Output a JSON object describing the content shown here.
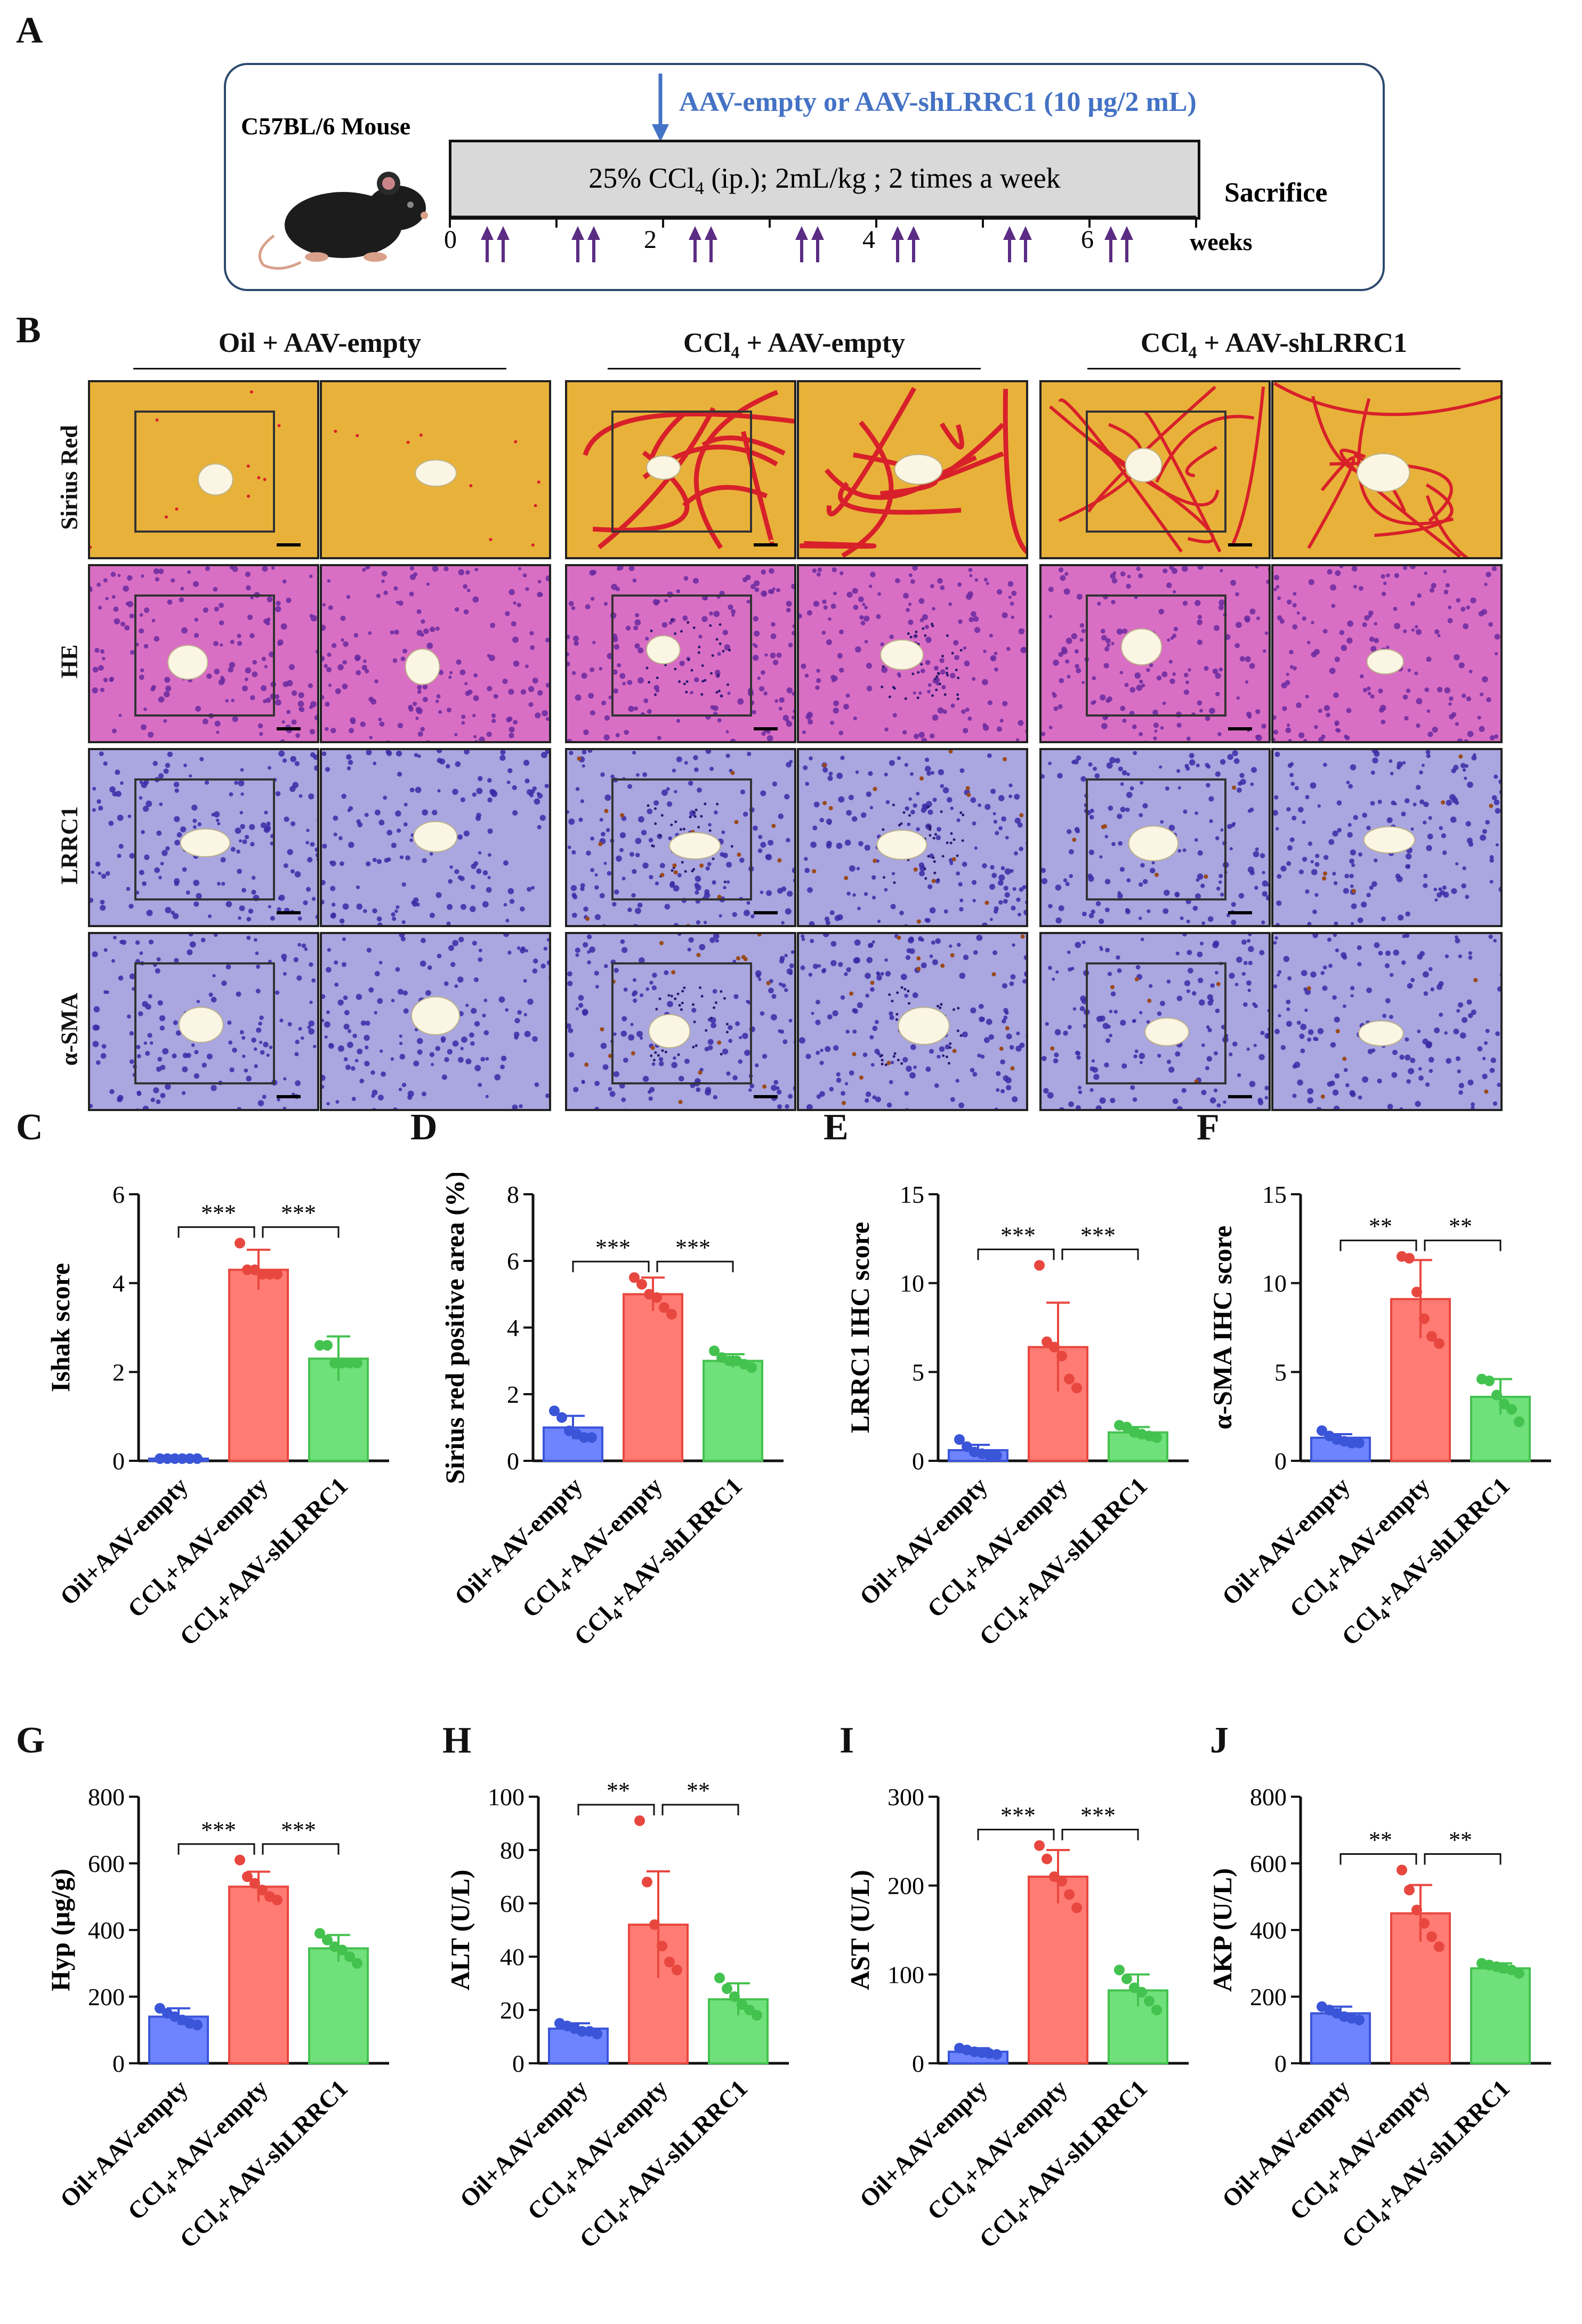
{
  "panel_letters": {
    "A": "A",
    "B": "B",
    "C": "C",
    "D": "D",
    "E": "E",
    "F": "F",
    "G": "G",
    "H": "H",
    "I": "I",
    "J": "J"
  },
  "timeline": {
    "mouse_label": "C57BL/6 Mouse",
    "injection_label": "AAV-empty or AAV-shLRRC1 (10 μg/2 mL)",
    "treatment_pre": "25% CCl",
    "treatment_sub": "4",
    "treatment_post": " (ip.); 2mL/kg ; 2 times a week",
    "sacrifice": "Sacrifice",
    "weeks_label": "weeks",
    "ticks": [
      "0",
      "2",
      "4",
      "6"
    ],
    "colors": {
      "injection": "#4472c4",
      "dose_arrow": "#5b2c83",
      "bar": "#d9d9d9"
    }
  },
  "histology": {
    "groups": [
      {
        "pre": "Oil + AAV-empty",
        "sub": "",
        "post": ""
      },
      {
        "pre": "CCl",
        "sub": "4",
        "post": " + AAV-empty"
      },
      {
        "pre": "CCl",
        "sub": "4",
        "post": " + AAV-shLRRC1"
      }
    ],
    "stains": [
      "Sirius Red",
      "HE",
      "LRRC1",
      "α-SMA"
    ],
    "colors": {
      "sirius": "#e8b23a",
      "he": "#d96fc4",
      "ihc": "#a9a6e0",
      "collagen": "#d8202a",
      "nuclei": "#3b2aa6",
      "brown": "#9a4a1a"
    }
  },
  "chart_data": [
    {
      "type": "bar",
      "panel": "C",
      "ylabel": "Ishak score",
      "ylim": [
        0,
        6
      ],
      "yticks": [
        0,
        2,
        4,
        6
      ],
      "categories": [
        "Oil+AAV-empty",
        "CCl4+AAV-empty",
        "CCl4+AAV-shLRRC1"
      ],
      "values": [
        0.05,
        4.3,
        2.3
      ],
      "errors": [
        0.02,
        0.45,
        0.5
      ],
      "points": [
        [
          0.05,
          0.05,
          0.05,
          0.05,
          0.05,
          0.05
        ],
        [
          4.9,
          4.3,
          4.3,
          4.2,
          4.2,
          4.2
        ],
        [
          2.6,
          2.6,
          2.2,
          2.2,
          2.2,
          2.2
        ]
      ],
      "sig": [
        "***",
        "***"
      ]
    },
    {
      "type": "bar",
      "panel": "D",
      "ylabel": "Sirius red positive area (%)",
      "ylim": [
        0,
        8
      ],
      "yticks": [
        0,
        2,
        4,
        6,
        8
      ],
      "categories": [
        "Oil+AAV-empty",
        "CCl4+AAV-empty",
        "CCl4+AAV-shLRRC1"
      ],
      "values": [
        1.0,
        5.0,
        3.0
      ],
      "errors": [
        0.35,
        0.5,
        0.2
      ],
      "points": [
        [
          1.5,
          1.3,
          0.9,
          0.8,
          0.7,
          0.7
        ],
        [
          5.5,
          5.3,
          5.0,
          4.9,
          4.6,
          4.4
        ],
        [
          3.3,
          3.1,
          3.0,
          3.0,
          2.9,
          2.8
        ]
      ],
      "sig": [
        "***",
        "***"
      ]
    },
    {
      "type": "bar",
      "panel": "E",
      "ylabel": "LRRC1 IHC score",
      "ylim": [
        0,
        15
      ],
      "yticks": [
        0,
        5,
        10,
        15
      ],
      "categories": [
        "Oil+AAV-empty",
        "CCl4+AAV-empty",
        "CCl4+AAV-shLRRC1"
      ],
      "values": [
        0.6,
        6.4,
        1.6
      ],
      "errors": [
        0.3,
        2.5,
        0.3
      ],
      "points": [
        [
          1.2,
          0.8,
          0.5,
          0.4,
          0.3,
          0.3
        ],
        [
          11.0,
          6.7,
          6.4,
          5.9,
          4.6,
          4.1
        ],
        [
          2.0,
          1.9,
          1.6,
          1.5,
          1.4,
          1.3
        ]
      ],
      "sig": [
        "***",
        "***"
      ]
    },
    {
      "type": "bar",
      "panel": "F",
      "ylabel": "α-SMA IHC score",
      "ylim": [
        0,
        15
      ],
      "yticks": [
        0,
        5,
        10,
        15
      ],
      "categories": [
        "Oil+AAV-empty",
        "CCl4+AAV-empty",
        "CCl4+AAV-shLRRC1"
      ],
      "values": [
        1.3,
        9.1,
        3.6
      ],
      "errors": [
        0.2,
        2.2,
        1.0
      ],
      "points": [
        [
          1.7,
          1.4,
          1.2,
          1.1,
          1.0,
          1.0
        ],
        [
          11.5,
          11.4,
          9.5,
          8.0,
          7.0,
          6.6
        ],
        [
          4.6,
          4.5,
          3.7,
          3.2,
          2.9,
          2.2
        ]
      ],
      "sig": [
        "**",
        "**"
      ]
    },
    {
      "type": "bar",
      "panel": "G",
      "ylabel": "Hyp (μg/g)",
      "ylim": [
        0,
        800
      ],
      "yticks": [
        0,
        200,
        400,
        600,
        800
      ],
      "categories": [
        "Oil+AAV-empty",
        "CCl4+AAV-empty",
        "CCl4+AAV-shLRRC1"
      ],
      "values": [
        140,
        530,
        345
      ],
      "errors": [
        25,
        45,
        40
      ],
      "points": [
        [
          165,
          150,
          140,
          130,
          120,
          115
        ],
        [
          610,
          560,
          540,
          520,
          500,
          490
        ],
        [
          390,
          370,
          350,
          340,
          320,
          300
        ]
      ],
      "sig": [
        "***",
        "***"
      ]
    },
    {
      "type": "bar",
      "panel": "H",
      "ylabel": "ALT (U/L)",
      "ylim": [
        0,
        100
      ],
      "yticks": [
        0,
        20,
        40,
        60,
        80,
        100
      ],
      "categories": [
        "Oil+AAV-empty",
        "CCl4+AAV-empty",
        "CCl4+AAV-shLRRC1"
      ],
      "values": [
        13,
        52,
        24
      ],
      "errors": [
        2,
        20,
        6
      ],
      "points": [
        [
          15,
          14,
          13,
          12,
          12,
          11
        ],
        [
          91,
          68,
          52,
          44,
          38,
          35
        ],
        [
          32,
          28,
          25,
          22,
          20,
          18
        ]
      ],
      "sig": [
        "**",
        "**"
      ]
    },
    {
      "type": "bar",
      "panel": "I",
      "ylabel": "AST (U/L)",
      "ylim": [
        0,
        300
      ],
      "yticks": [
        0,
        100,
        200,
        300
      ],
      "categories": [
        "Oil+AAV-empty",
        "CCl4+AAV-empty",
        "CCl4+AAV-shLRRC1"
      ],
      "values": [
        13,
        210,
        82
      ],
      "errors": [
        4,
        30,
        18
      ],
      "points": [
        [
          17,
          15,
          13,
          12,
          11,
          10
        ],
        [
          245,
          230,
          210,
          205,
          190,
          175
        ],
        [
          105,
          95,
          85,
          80,
          70,
          60
        ]
      ],
      "sig": [
        "***",
        "***"
      ]
    },
    {
      "type": "bar",
      "panel": "J",
      "ylabel": "AKP (U/L)",
      "ylim": [
        0,
        800
      ],
      "yticks": [
        0,
        200,
        400,
        600,
        800
      ],
      "categories": [
        "Oil+AAV-empty",
        "CCl4+AAV-empty",
        "CCl4+AAV-shLRRC1"
      ],
      "values": [
        150,
        450,
        285
      ],
      "errors": [
        20,
        85,
        15
      ],
      "points": [
        [
          170,
          160,
          150,
          140,
          135,
          130
        ],
        [
          580,
          520,
          460,
          420,
          380,
          350
        ],
        [
          300,
          295,
          290,
          285,
          280,
          270
        ]
      ],
      "sig": [
        "**",
        "**"
      ]
    }
  ],
  "bar_colors": {
    "fill": [
      "#6e84ff",
      "#ff7b73",
      "#6fe07a"
    ],
    "point": [
      "#3b55d9",
      "#e8473f",
      "#44c24f"
    ],
    "edge": [
      "#3b55d9",
      "#e8473f",
      "#44c24f"
    ]
  }
}
